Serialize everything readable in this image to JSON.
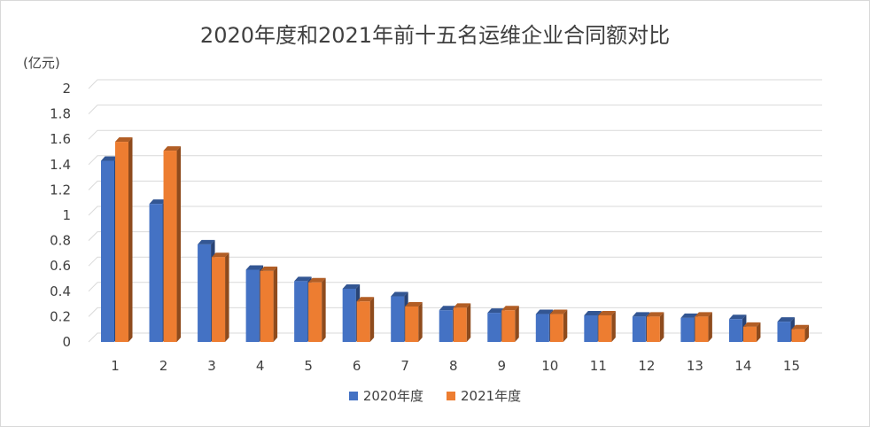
{
  "chart_data": {
    "type": "bar",
    "title": "2020年度和2021年前十五名运维企业合同额对比",
    "ylabel": "(亿元)",
    "xlabel": "",
    "categories": [
      "1",
      "2",
      "3",
      "4",
      "5",
      "6",
      "7",
      "8",
      "9",
      "10",
      "11",
      "12",
      "13",
      "14",
      "15"
    ],
    "series": [
      {
        "name": "2020年度",
        "color": "#4472C4",
        "values": [
          1.43,
          1.09,
          0.77,
          0.57,
          0.48,
          0.42,
          0.36,
          0.25,
          0.23,
          0.22,
          0.21,
          0.2,
          0.19,
          0.18,
          0.16
        ]
      },
      {
        "name": "2021年度",
        "color": "#ED7D31",
        "values": [
          1.58,
          1.51,
          0.67,
          0.56,
          0.47,
          0.32,
          0.28,
          0.27,
          0.25,
          0.22,
          0.21,
          0.2,
          0.2,
          0.12,
          0.1
        ]
      }
    ],
    "ylim": [
      0,
      2
    ],
    "yticks": [
      "0",
      "0.2",
      "0.4",
      "0.6",
      "0.8",
      "1",
      "1.2",
      "1.4",
      "1.6",
      "1.8",
      "2"
    ],
    "grid": true,
    "legend_position": "bottom",
    "bar_style": "3d"
  }
}
